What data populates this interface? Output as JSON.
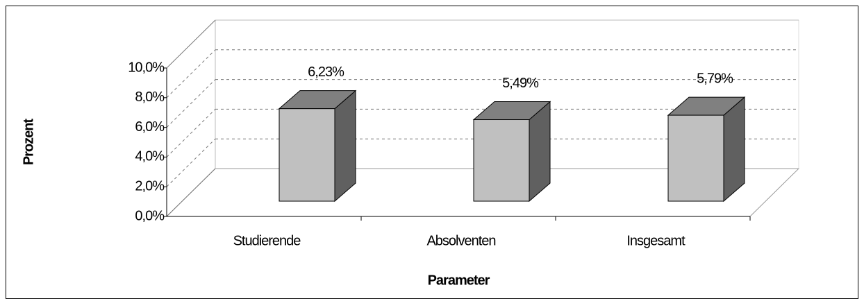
{
  "chart_data": {
    "type": "bar3d",
    "xlabel": "Parameter",
    "ylabel": "Prozent",
    "categories": [
      "Studierende",
      "Absolventen",
      "Insgesamt"
    ],
    "values": [
      6.23,
      5.49,
      5.79
    ],
    "value_labels": [
      "6,23%",
      "5,49%",
      "5,79%"
    ],
    "color": "#c0c0c0",
    "ylim": [
      0,
      10
    ],
    "yticks": [
      {
        "value": 0,
        "label": "0,0%"
      },
      {
        "value": 2,
        "label": "2,0%"
      },
      {
        "value": 4,
        "label": "4,0%"
      },
      {
        "value": 6,
        "label": "6,0%"
      },
      {
        "value": 8,
        "label": "8,0%"
      },
      {
        "value": 10,
        "label": "10,0%"
      }
    ],
    "grid": true
  }
}
